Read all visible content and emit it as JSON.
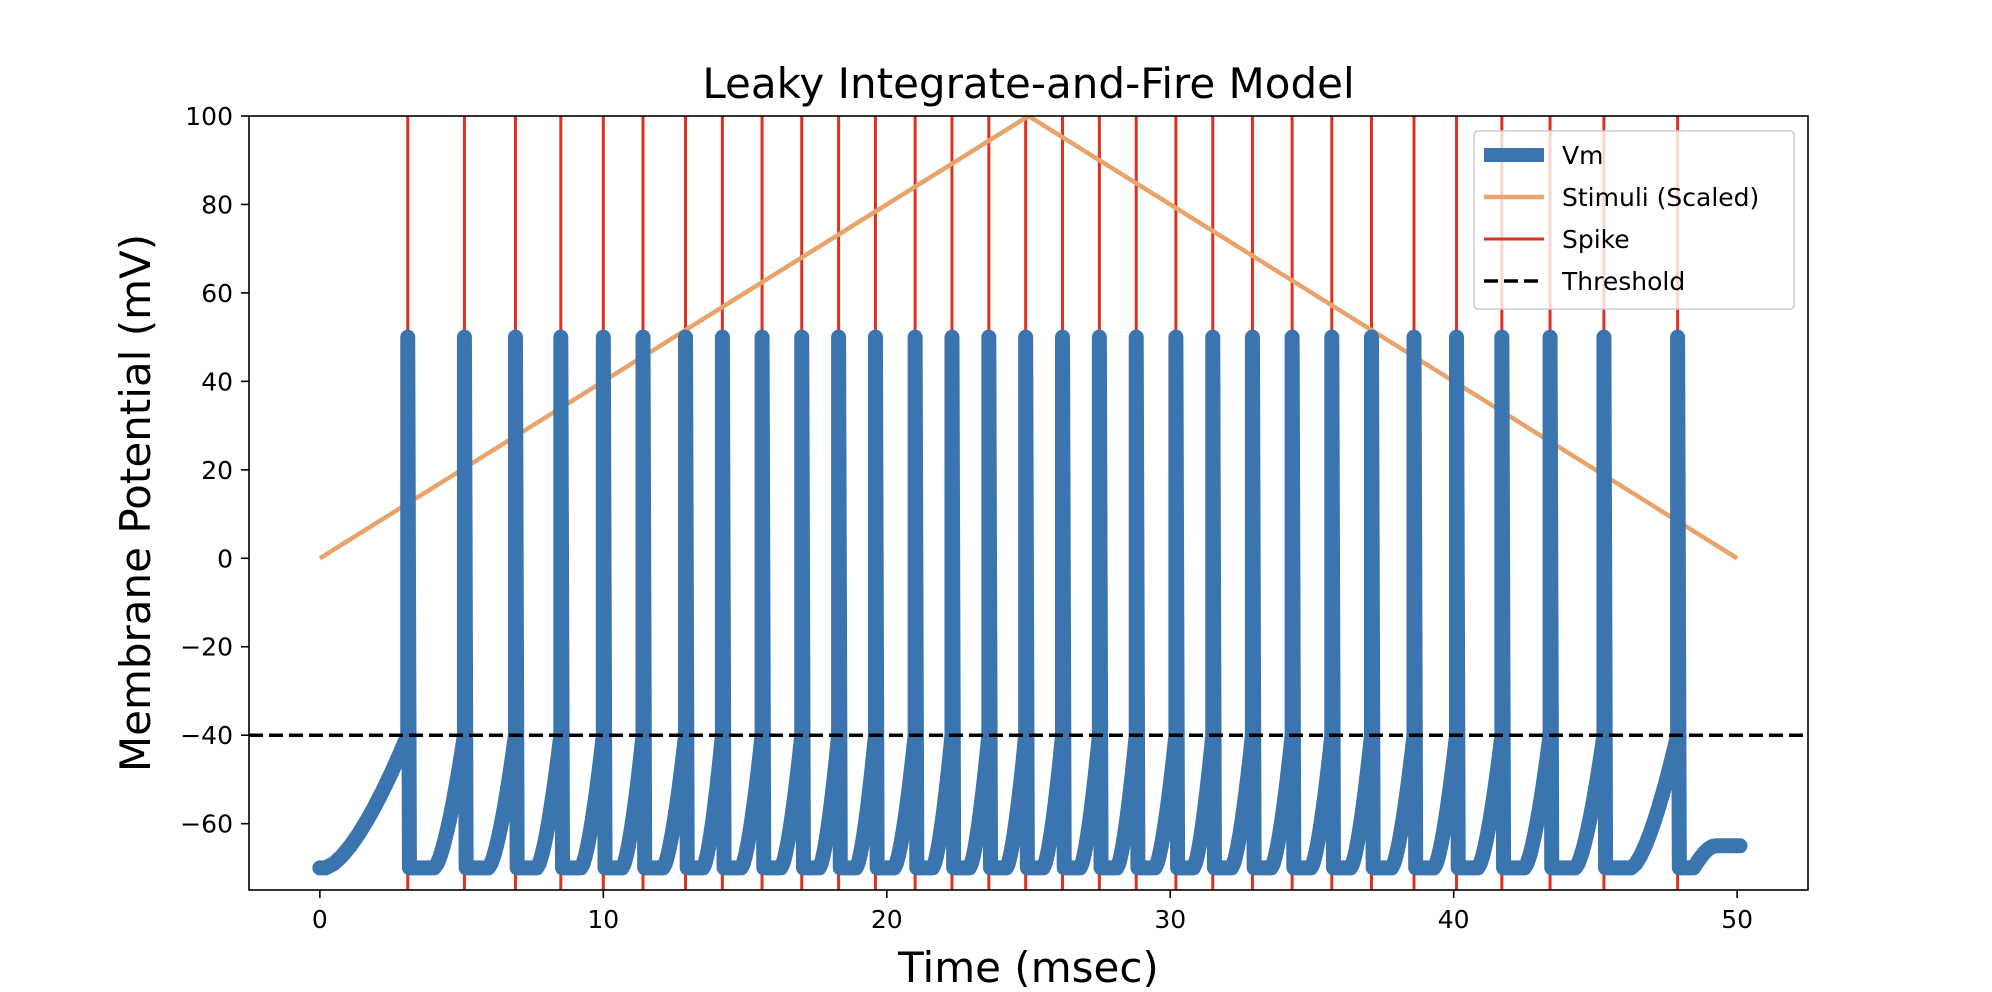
{
  "chart_data": {
    "type": "line",
    "title": "Leaky Integrate-and-Fire Model",
    "xlabel": "Time (msec)",
    "ylabel": "Membrane Potential (mV)",
    "xlim": [
      -2.5,
      52.5
    ],
    "ylim": [
      -75,
      100
    ],
    "xticks": [
      0,
      10,
      20,
      30,
      40,
      50
    ],
    "xtick_labels": [
      "0",
      "10",
      "20",
      "30",
      "40",
      "50"
    ],
    "yticks": [
      -60,
      -40,
      -20,
      0,
      20,
      40,
      60,
      80,
      100
    ],
    "ytick_labels": [
      "−60",
      "−40",
      "−20",
      "0",
      "20",
      "40",
      "60",
      "80",
      "100"
    ],
    "grid": false,
    "legend_position": "top-right",
    "threshold": -40,
    "spike_times": [
      3.1,
      5.1,
      6.9,
      8.5,
      10.0,
      11.4,
      12.9,
      14.2,
      15.6,
      17.0,
      18.3,
      19.6,
      21.0,
      22.3,
      23.6,
      24.9,
      26.2,
      27.5,
      28.8,
      30.2,
      31.5,
      32.9,
      34.3,
      35.7,
      37.1,
      38.6,
      40.1,
      41.7,
      43.4,
      45.3,
      47.9
    ],
    "series": [
      {
        "name": "Vm",
        "color": "#3a75b0",
        "style": "solid-thick",
        "rest": -70,
        "peak": 50,
        "start": 0,
        "end": 50.1,
        "end_value": -65
      },
      {
        "name": "Stimuli (Scaled)",
        "color": "#e8a46a",
        "style": "solid",
        "x": [
          0,
          25,
          50
        ],
        "y": [
          0,
          100,
          0
        ]
      },
      {
        "name": "Spike",
        "color": "#e0301e",
        "style": "vertical-lines"
      },
      {
        "name": "Threshold",
        "color": "#000000",
        "style": "dashed"
      }
    ]
  }
}
